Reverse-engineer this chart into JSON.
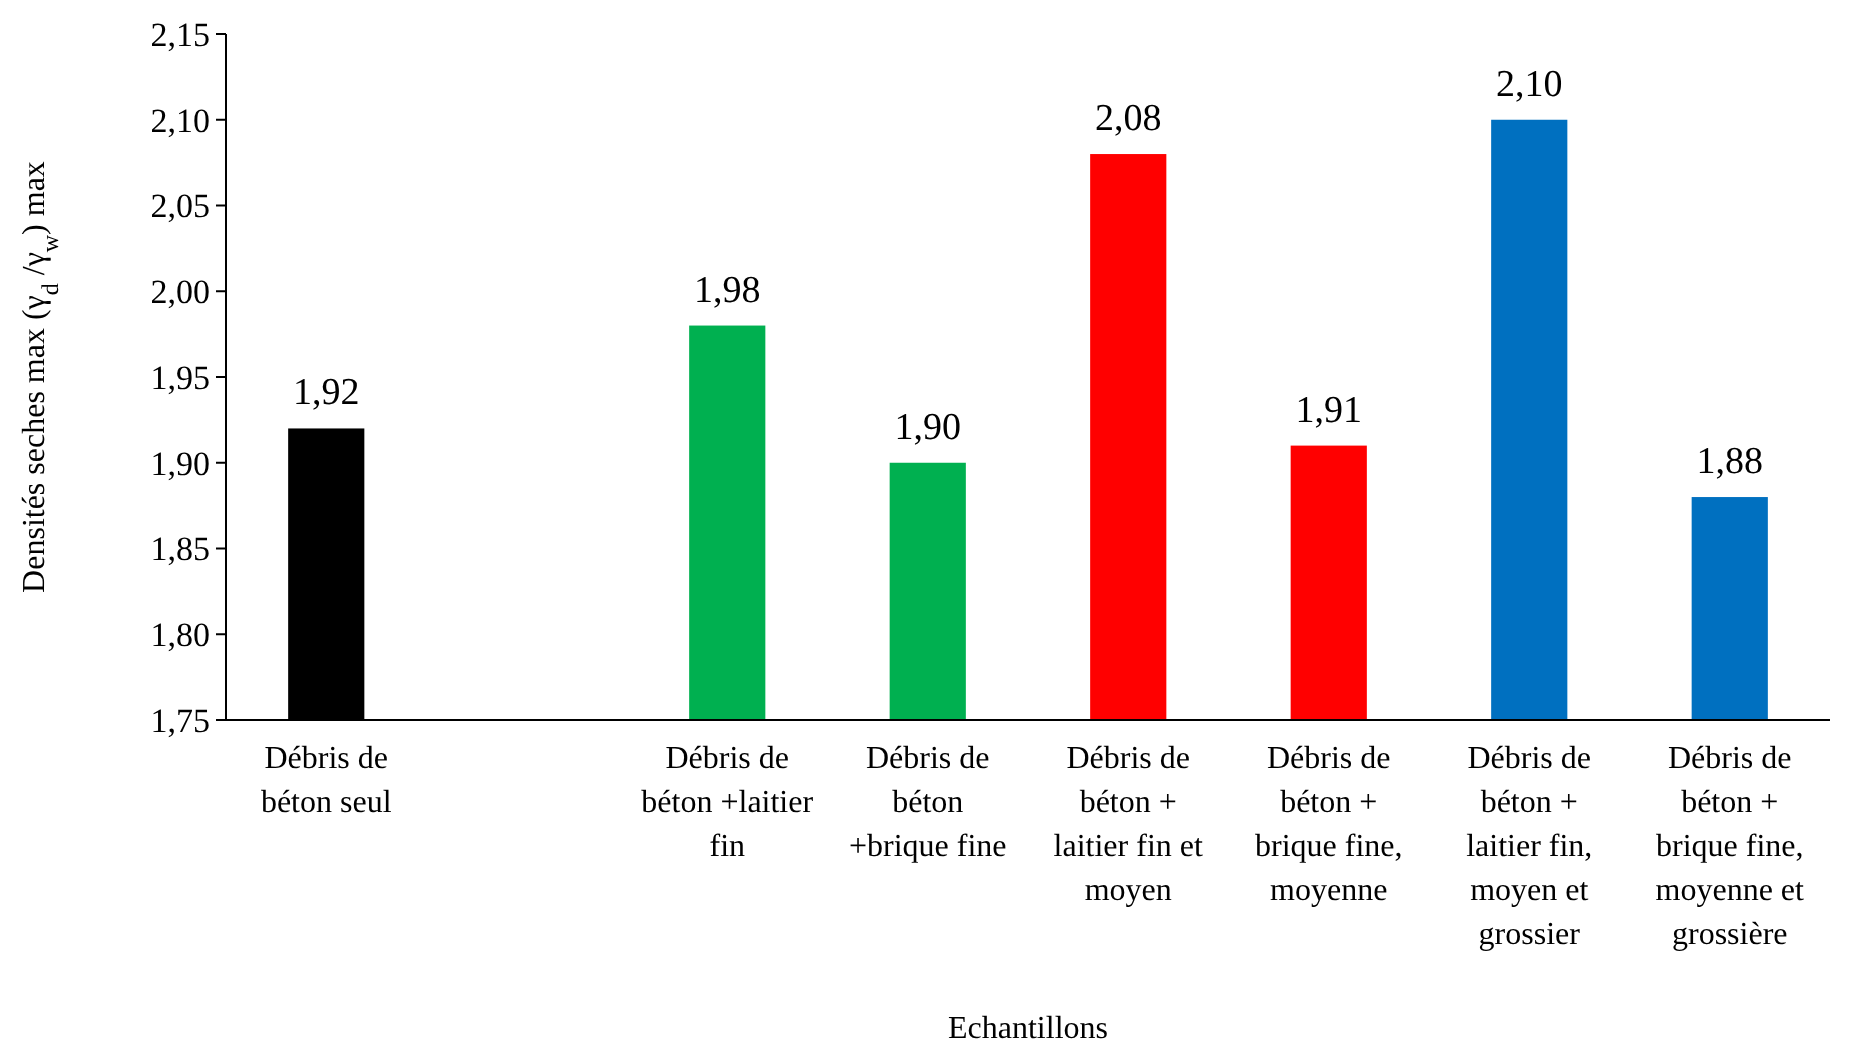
{
  "chart_data": {
    "type": "bar",
    "xlabel": "Echantillons",
    "ylabel": "Densités seches max  (γ$_{d}$ /γ$_{w}$) max",
    "categories": [
      "Débris de béton seul",
      null,
      "Débris de béton +laitier fin",
      "Débris de béton +brique fine",
      "Débris de béton + laitier fin et moyen",
      "Débris de béton + brique fine, moyenne",
      "Débris de béton + laitier fin, moyen et grossier",
      "Débris de béton + brique fine, moyenne et grossière"
    ],
    "values": [
      1.92,
      null,
      1.98,
      1.9,
      2.08,
      1.91,
      2.1,
      1.88
    ],
    "value_labels": [
      "1,92",
      null,
      "1,98",
      "1,90",
      "2,08",
      "1,91",
      "2,10",
      "1,88"
    ],
    "colors": [
      "#000000",
      null,
      "#00b050",
      "#00b050",
      "#ff0000",
      "#ff0000",
      "#0070c0",
      "#0070c0"
    ],
    "ylim": [
      1.75,
      2.15
    ],
    "yticks": [
      {
        "value": 1.75,
        "label": "1,75"
      },
      {
        "value": 1.8,
        "label": "1,80"
      },
      {
        "value": 1.85,
        "label": "1,85"
      },
      {
        "value": 1.9,
        "label": "1,90"
      },
      {
        "value": 1.95,
        "label": "1,95"
      },
      {
        "value": 2.0,
        "label": "2,00"
      },
      {
        "value": 2.05,
        "label": "2,05"
      },
      {
        "value": 2.1,
        "label": "2,10"
      },
      {
        "value": 2.15,
        "label": "2,15"
      }
    ],
    "grid": false
  }
}
